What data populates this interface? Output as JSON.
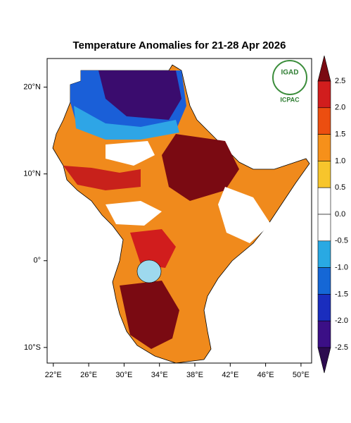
{
  "map": {
    "title": "Temperature Anomalies for 21-28 Apr 2026",
    "xlim": [
      21.3,
      51.2
    ],
    "ylim": [
      -11.8,
      23.3
    ],
    "xticks": [
      {
        "value": 22,
        "label": "22°E"
      },
      {
        "value": 26,
        "label": "26°E"
      },
      {
        "value": 30,
        "label": "30°E"
      },
      {
        "value": 34,
        "label": "34°E"
      },
      {
        "value": 38,
        "label": "38°E"
      },
      {
        "value": 42,
        "label": "42°E"
      },
      {
        "value": 46,
        "label": "46°E"
      },
      {
        "value": 50,
        "label": "50°E"
      }
    ],
    "yticks": [
      {
        "value": 20,
        "label": "20°N"
      },
      {
        "value": 10,
        "label": "10°N"
      },
      {
        "value": 0,
        "label": "0°"
      },
      {
        "value": -10,
        "label": "10°S"
      }
    ],
    "logo": {
      "top": "IGAD",
      "bottom": "ICPAC"
    },
    "colorbar": {
      "ticks": [
        {
          "value": 2.5,
          "label": "2.5"
        },
        {
          "value": 2,
          "label": "2.0"
        },
        {
          "value": 1.5,
          "label": "1.5"
        },
        {
          "value": 1,
          "label": "1.0"
        },
        {
          "value": 0.5,
          "label": "0.5"
        },
        {
          "value": 0,
          "label": "0.0"
        },
        {
          "value": -0.5,
          "label": "-0.5"
        },
        {
          "value": -1,
          "label": "-1.0"
        },
        {
          "value": -1.5,
          "label": "-1.5"
        },
        {
          "value": -2,
          "label": "-2.0"
        },
        {
          "value": -2.5,
          "label": "-2.5"
        }
      ],
      "colors": [
        "#7a0a12",
        "#d11d1d",
        "#ec4e10",
        "#f6901a",
        "#f7c52c",
        "#ffffff",
        "#ffffff",
        "#29a9e3",
        "#1567d6",
        "#1a2dbe",
        "#3b0f86",
        "#2c0b4f"
      ]
    }
  }
}
